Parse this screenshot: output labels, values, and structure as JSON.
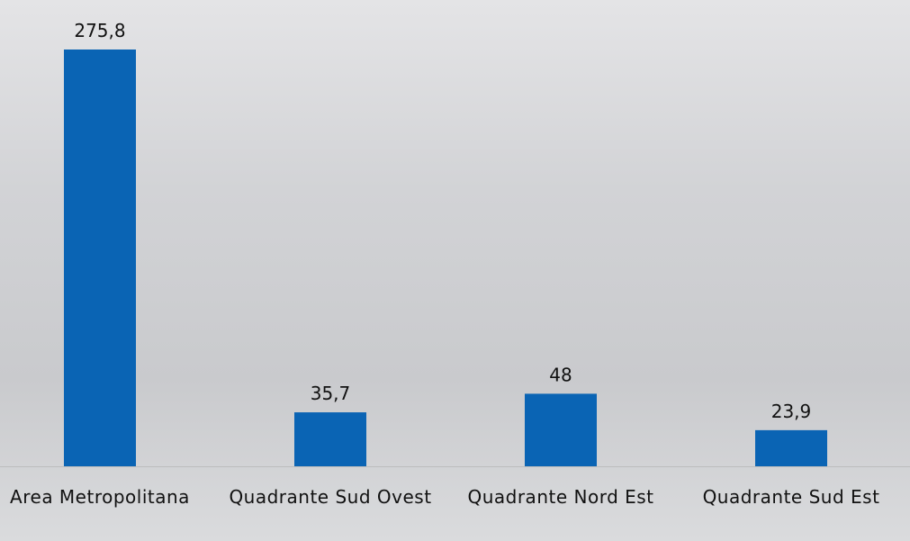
{
  "chart_data": {
    "type": "bar",
    "categories": [
      "Area Metropolitana",
      "Quadrante Sud Ovest",
      "Quadrante Nord Est",
      "Quadrante Sud Est"
    ],
    "values": [
      275.8,
      35.7,
      48,
      23.9
    ],
    "value_labels": [
      "275,8",
      "35,7",
      "48",
      "23,9"
    ],
    "color": "#0a64b4"
  }
}
